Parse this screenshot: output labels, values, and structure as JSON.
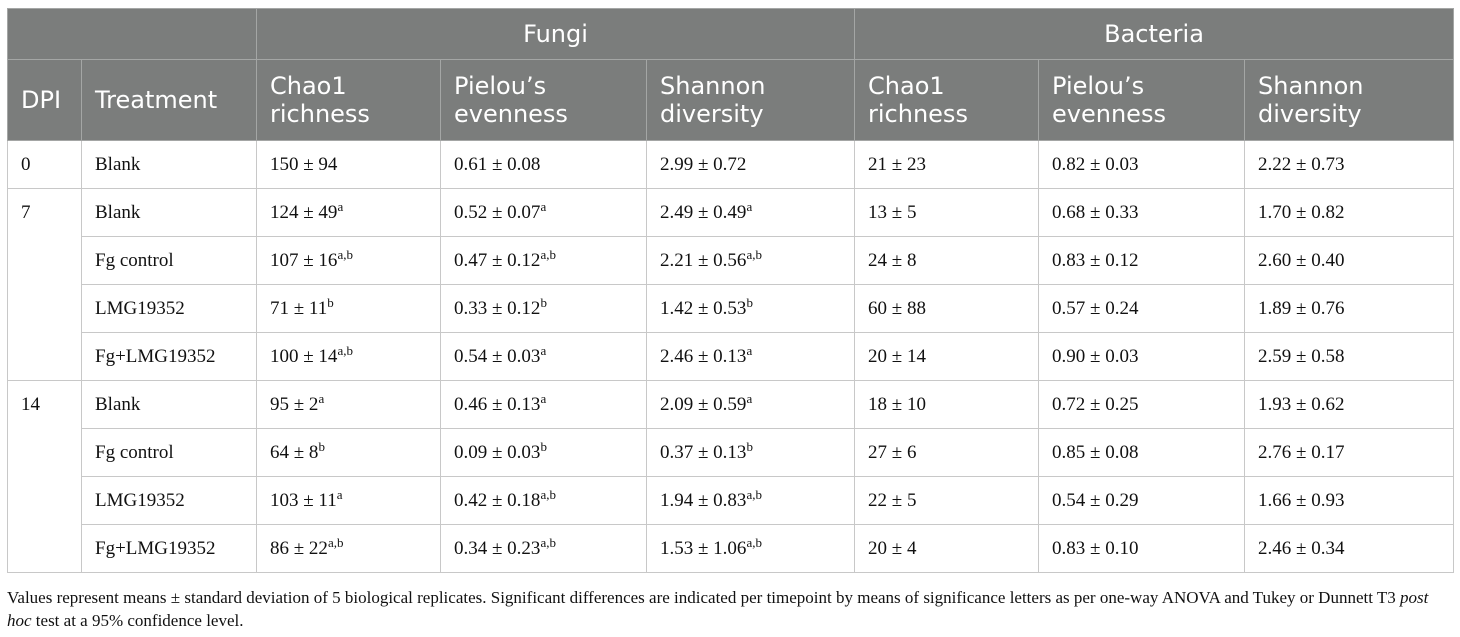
{
  "header": {
    "group_fungi": "Fungi",
    "group_bacteria": "Bacteria",
    "col_dpi": "DPI",
    "col_treatment": "Treatment",
    "chao1_l1": "Chao1",
    "chao1_l2": "richness",
    "pielou_l1": "Pielou’s",
    "pielou_l2": "evenness",
    "shannon_l1": "Shannon",
    "shannon_l2": "diversity"
  },
  "rows": [
    {
      "dpi": "0",
      "treatment": "Blank",
      "fc": "150 ± 94",
      "fc_sup": "",
      "fp": "0.61 ± 0.08",
      "fp_sup": "",
      "fs": "2.99 ± 0.72",
      "fs_sup": "",
      "bc": "21 ± 23",
      "bp": "0.82 ± 0.03",
      "bs": "2.22 ± 0.73"
    },
    {
      "dpi": "7",
      "treatment": "Blank",
      "fc": "124 ± 49",
      "fc_sup": "a",
      "fp": "0.52 ± 0.07",
      "fp_sup": "a",
      "fs": "2.49 ± 0.49",
      "fs_sup": "a",
      "bc": "13 ± 5",
      "bp": "0.68 ± 0.33",
      "bs": "1.70 ± 0.82"
    },
    {
      "dpi": "",
      "treatment": "Fg control",
      "fc": "107 ± 16",
      "fc_sup": "a,b",
      "fp": "0.47 ± 0.12",
      "fp_sup": "a,b",
      "fs": "2.21 ± 0.56",
      "fs_sup": "a,b",
      "bc": "24 ± 8",
      "bp": "0.83 ± 0.12",
      "bs": "2.60 ± 0.40"
    },
    {
      "dpi": "",
      "treatment": "LMG19352",
      "fc": "71 ± 11",
      "fc_sup": "b",
      "fp": "0.33 ± 0.12",
      "fp_sup": "b",
      "fs": "1.42 ± 0.53",
      "fs_sup": "b",
      "bc": "60 ± 88",
      "bp": "0.57 ± 0.24",
      "bs": "1.89 ± 0.76"
    },
    {
      "dpi": "",
      "treatment": "Fg+LMG19352",
      "fc": "100 ± 14",
      "fc_sup": "a,b",
      "fp": "0.54 ± 0.03",
      "fp_sup": "a",
      "fs": "2.46 ± 0.13",
      "fs_sup": "a",
      "bc": "20 ± 14",
      "bp": "0.90 ± 0.03",
      "bs": "2.59 ± 0.58"
    },
    {
      "dpi": "14",
      "treatment": "Blank",
      "fc": "95 ± 2",
      "fc_sup": "a",
      "fp": "0.46 ± 0.13",
      "fp_sup": "a",
      "fs": "2.09 ± 0.59",
      "fs_sup": "a",
      "bc": "18 ± 10",
      "bp": "0.72 ± 0.25",
      "bs": "1.93 ± 0.62"
    },
    {
      "dpi": "",
      "treatment": "Fg control",
      "fc": "64 ± 8",
      "fc_sup": "b",
      "fp": "0.09 ± 0.03",
      "fp_sup": "b",
      "fs": "0.37 ± 0.13",
      "fs_sup": "b",
      "bc": "27 ± 6",
      "bp": "0.85 ± 0.08",
      "bs": "2.76 ± 0.17"
    },
    {
      "dpi": "",
      "treatment": "LMG19352",
      "fc": "103 ± 11",
      "fc_sup": "a",
      "fp": "0.42 ± 0.18",
      "fp_sup": "a,b",
      "fs": "1.94 ± 0.83",
      "fs_sup": "a,b",
      "bc": "22 ± 5",
      "bp": "0.54 ± 0.29",
      "bs": "1.66 ± 0.93"
    },
    {
      "dpi": "",
      "treatment": "Fg+LMG19352",
      "fc": "86 ± 22",
      "fc_sup": "a,b",
      "fp": "0.34 ± 0.23",
      "fp_sup": "a,b",
      "fs": "1.53 ± 1.06",
      "fs_sup": "a,b",
      "bc": "20 ± 4",
      "bp": "0.83 ± 0.10",
      "bs": "2.46 ± 0.34"
    }
  ],
  "footnote": {
    "part1": "Values represent means ± standard deviation of 5 biological replicates. Significant differences are indicated per timepoint by means of significance letters as per one-way ANOVA and Tukey or Dunnett T3 ",
    "italic": "post hoc",
    "part2": " test at a 95% confidence level."
  },
  "colors": {
    "header_bg": "#7b7d7c",
    "header_text": "#ffffff",
    "grid": "#c8c8c8"
  }
}
